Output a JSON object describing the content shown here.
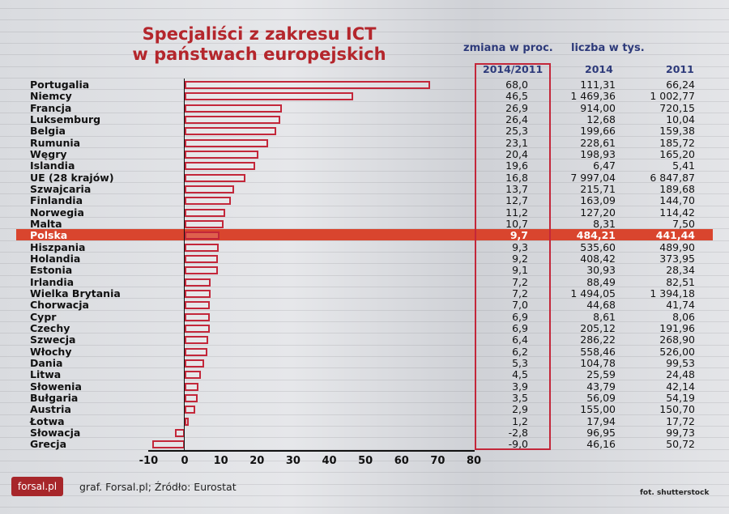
{
  "chart_data": {
    "type": "bar",
    "orientation": "horizontal",
    "title": "Specjaliści z zakresu ICT w państwach europejskich",
    "title_lines": [
      "Specjaliści z zakresu ICT",
      "w państwach europejskich"
    ],
    "header_change": "zmiana w proc.",
    "header_count": "liczba w tys.",
    "columns": [
      "2014/2011",
      "2014",
      "2011"
    ],
    "xlim": [
      -10,
      80
    ],
    "xticks": [
      "-10",
      "0",
      "10",
      "20",
      "30",
      "40",
      "50",
      "60",
      "70",
      "80"
    ],
    "highlight": "Polska",
    "colors": {
      "bar": "#c3273a",
      "highlight": "#d9452e",
      "title": "#b4262c",
      "header": "#2d3a7a"
    },
    "categories": [
      "Portugalia",
      "Niemcy",
      "Francja",
      "Luksemburg",
      "Belgia",
      "Rumunia",
      "Węgry",
      "Islandia",
      "UE (28 krajów)",
      "Szwajcaria",
      "Finlandia",
      "Norwegia",
      "Malta",
      "Polska",
      "Hiszpania",
      "Holandia",
      "Estonia",
      "Irlandia",
      "Wielka Brytania",
      "Chorwacja",
      "Cypr",
      "Czechy",
      "Szwecja",
      "Włochy",
      "Dania",
      "Litwa",
      "Słowenia",
      "Bułgaria",
      "Austria",
      "Łotwa",
      "Słowacja",
      "Grecja"
    ],
    "values": [
      68.0,
      46.5,
      26.9,
      26.4,
      25.3,
      23.1,
      20.4,
      19.6,
      16.8,
      13.7,
      12.7,
      11.2,
      10.7,
      9.7,
      9.3,
      9.2,
      9.1,
      7.2,
      7.2,
      7.0,
      6.9,
      6.9,
      6.4,
      6.2,
      5.3,
      4.5,
      3.9,
      3.5,
      2.9,
      1.2,
      -2.8,
      -9.0
    ],
    "change_labels": [
      "68,0",
      "46,5",
      "26,9",
      "26,4",
      "25,3",
      "23,1",
      "20,4",
      "19,6",
      "16,8",
      "13,7",
      "12,7",
      "11,2",
      "10,7",
      "9,7",
      "9,3",
      "9,2",
      "9,1",
      "7,2",
      "7,2",
      "7,0",
      "6,9",
      "6,9",
      "6,4",
      "6,2",
      "5,3",
      "4,5",
      "3,9",
      "3,5",
      "2,9",
      "1,2",
      "-2,8",
      "-9,0"
    ],
    "count_2014": [
      "111,31",
      "1 469,36",
      "914,00",
      "12,68",
      "199,66",
      "228,61",
      "198,93",
      "6,47",
      "7 997,04",
      "215,71",
      "163,09",
      "127,20",
      "8,31",
      "484,21",
      "535,60",
      "408,42",
      "30,93",
      "88,49",
      "1 494,05",
      "44,68",
      "8,61",
      "205,12",
      "286,22",
      "558,46",
      "104,78",
      "25,59",
      "43,79",
      "56,09",
      "155,00",
      "17,94",
      "96,95",
      "46,16"
    ],
    "count_2011": [
      "66,24",
      "1 002,77",
      "720,15",
      "10,04",
      "159,38",
      "185,72",
      "165,20",
      "5,41",
      "6 847,87",
      "189,68",
      "144,70",
      "114,42",
      "7,50",
      "441,44",
      "489,90",
      "373,95",
      "28,34",
      "82,51",
      "1 394,18",
      "41,74",
      "8,06",
      "191,96",
      "268,90",
      "526,00",
      "99,53",
      "24,48",
      "42,14",
      "54,19",
      "150,70",
      "17,72",
      "99,73",
      "50,72"
    ]
  },
  "footer": {
    "logo": "forsal.pl",
    "source": "graf. Forsal.pl; Źródło: Eurostat",
    "photo": "fot. shutterstock"
  }
}
